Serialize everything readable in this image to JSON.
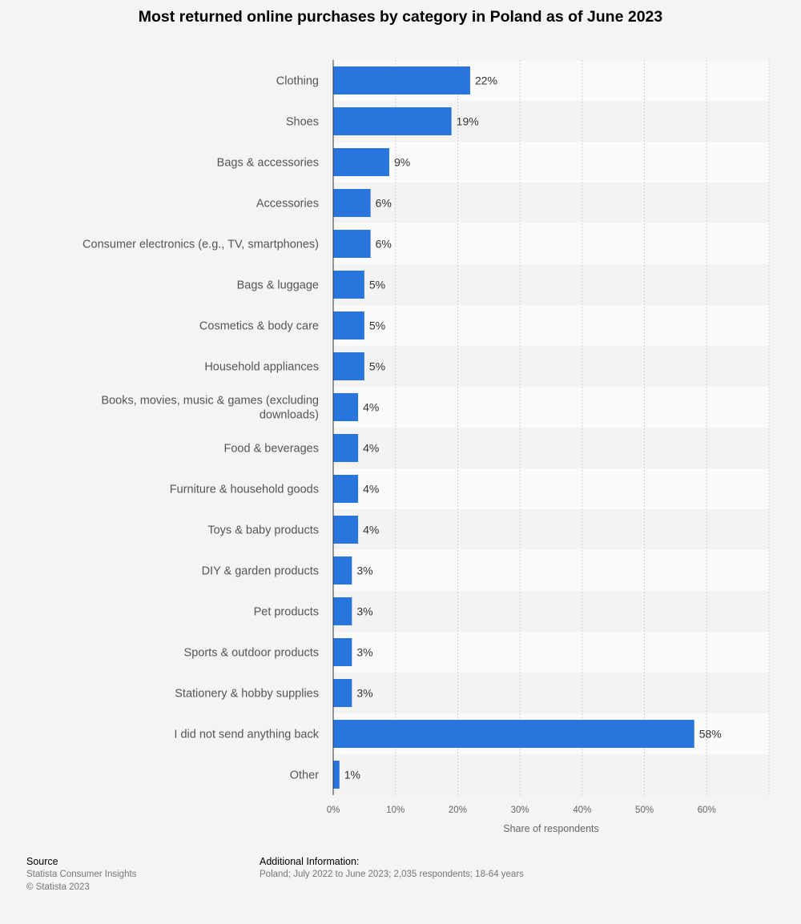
{
  "chart_data": {
    "type": "bar",
    "orientation": "horizontal",
    "title": "Most returned online purchases by category in Poland as of June 2023",
    "categories": [
      "Clothing",
      "Shoes",
      "Bags & accessories",
      "Accessories",
      "Consumer electronics (e.g., TV, smartphones)",
      "Bags & luggage",
      "Cosmetics & body care",
      "Household appliances",
      "Books, movies, music & games (excluding downloads)",
      "Food & beverages",
      "Furniture & household goods",
      "Toys & baby products",
      "DIY & garden products",
      "Pet products",
      "Sports & outdoor products",
      "Stationery & hobby supplies",
      "I did not send anything back",
      "Other"
    ],
    "category_lines": [
      [
        "Clothing"
      ],
      [
        "Shoes"
      ],
      [
        "Bags & accessories"
      ],
      [
        "Accessories"
      ],
      [
        "Consumer electronics (e.g., TV, smartphones)"
      ],
      [
        "Bags & luggage"
      ],
      [
        "Cosmetics & body care"
      ],
      [
        "Household appliances"
      ],
      [
        "Books, movies, music & games (excluding",
        "downloads)"
      ],
      [
        "Food & beverages"
      ],
      [
        "Furniture & household goods"
      ],
      [
        "Toys & baby products"
      ],
      [
        "DIY & garden products"
      ],
      [
        "Pet products"
      ],
      [
        "Sports & outdoor products"
      ],
      [
        "Stationery & hobby supplies"
      ],
      [
        "I did not send anything back"
      ],
      [
        "Other"
      ]
    ],
    "values": [
      22,
      19,
      9,
      6,
      6,
      5,
      5,
      5,
      4,
      4,
      4,
      4,
      3,
      3,
      3,
      3,
      58,
      1
    ],
    "value_labels": [
      "22%",
      "19%",
      "9%",
      "6%",
      "6%",
      "5%",
      "5%",
      "5%",
      "4%",
      "4%",
      "4%",
      "4%",
      "3%",
      "3%",
      "3%",
      "3%",
      "58%",
      "1%"
    ],
    "xlabel": "Share of respondents",
    "ylabel": "",
    "xlim": [
      0,
      70
    ],
    "ticks": [
      0,
      10,
      20,
      30,
      40,
      50,
      60
    ],
    "tick_labels": [
      "0%",
      "10%",
      "20%",
      "30%",
      "40%",
      "50%",
      "60%"
    ],
    "grid": true,
    "bar_color": "#2876dd"
  },
  "footer": {
    "source_heading": "Source",
    "source_line1": "Statista Consumer Insights",
    "source_line2": "© Statista 2023",
    "info_heading": "Additional Information:",
    "info_text": "Poland; July 2022 to June 2023; 2,035 respondents; 18-64 years"
  }
}
